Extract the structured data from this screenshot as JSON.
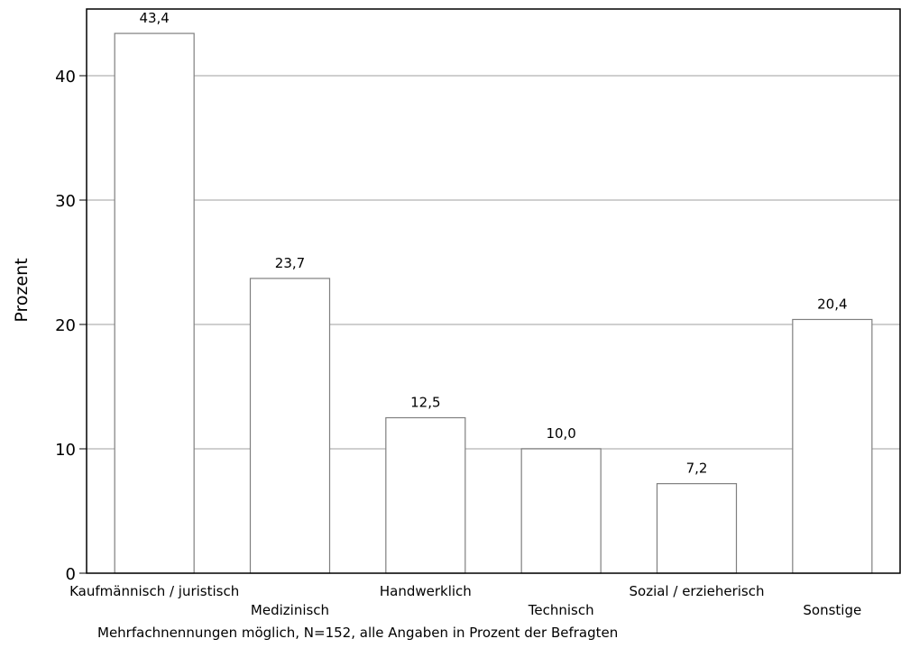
{
  "chart_data": {
    "type": "bar",
    "categories": [
      "Kaufmännisch / juristisch",
      "Medizinisch",
      "Handwerklich",
      "Technisch",
      "Sozial / erzieherisch",
      "Sonstige"
    ],
    "values": [
      43.4,
      23.7,
      12.5,
      10.0,
      7.2,
      20.4
    ],
    "data_labels": [
      "43,4",
      "23,7",
      "12,5",
      "10,0",
      "7,2",
      "20,4"
    ],
    "ylabel": "Prozent",
    "xlabel": "",
    "ylim": [
      0,
      45
    ],
    "yticks": [
      0,
      10,
      20,
      30,
      40
    ],
    "grid": true,
    "legend": "none",
    "colors": {
      "bar_fill": "#ffffff",
      "bar_stroke": "#7f7f7f",
      "grid": "#cfcfcf",
      "axis": "#000000"
    }
  },
  "footnote": "Mehrfachnennungen möglich, N=152, alle Angaben in Prozent der Befragten"
}
